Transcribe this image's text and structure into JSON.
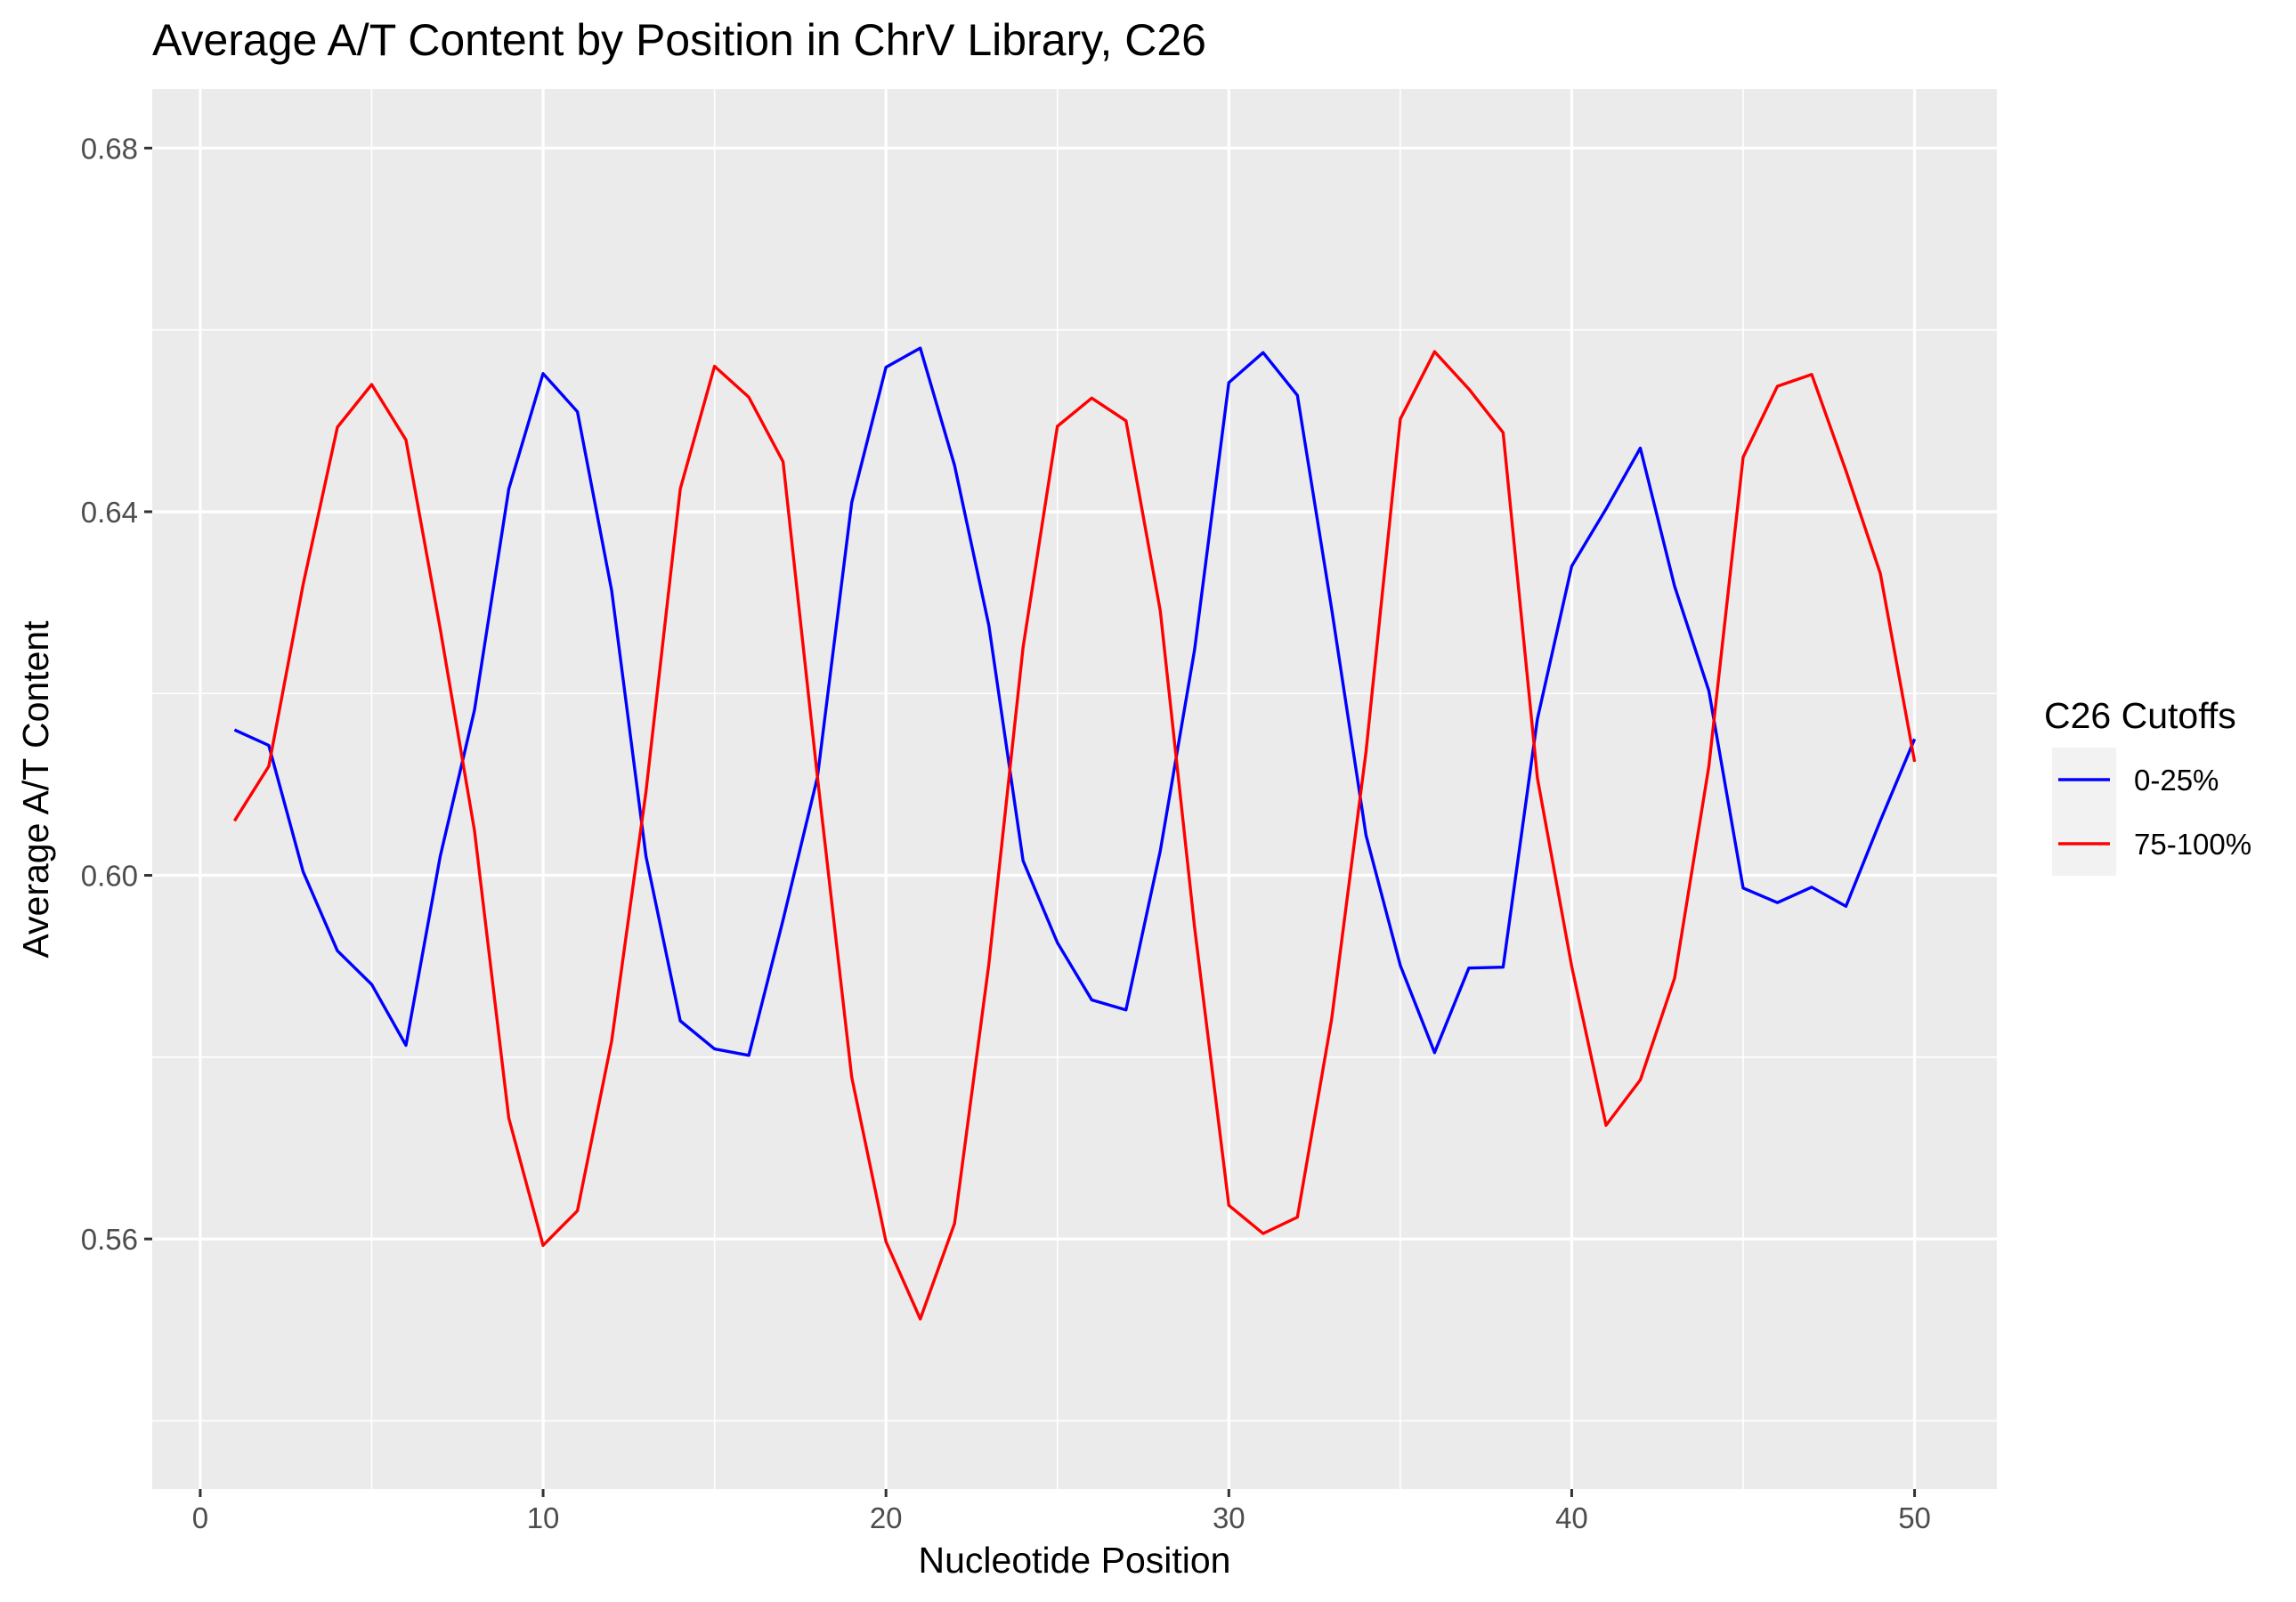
{
  "chart_data": {
    "type": "line",
    "title": "Average A/T Content by Position in ChrV Library, C26",
    "xlabel": "Nucleotide Position",
    "ylabel": "Average A/T Content",
    "xlim": [
      -1.4,
      52.4
    ],
    "ylim": [
      0.5325,
      0.6865
    ],
    "x_ticks": [
      0,
      10,
      20,
      30,
      40,
      50
    ],
    "x_tick_labels": [
      "0",
      "10",
      "20",
      "30",
      "40",
      "50"
    ],
    "y_ticks": [
      0.56,
      0.6,
      0.64,
      0.68
    ],
    "y_tick_labels": [
      "0.56",
      "0.60",
      "0.64",
      "0.68"
    ],
    "y_minor_ticks": [
      0.54,
      0.58,
      0.62,
      0.66
    ],
    "grid": true,
    "background": "#ebebeb",
    "legend": {
      "title": "C26 Cutoffs",
      "position": "right"
    },
    "x": [
      1,
      2,
      3,
      4,
      5,
      6,
      7,
      8,
      9,
      10,
      11,
      12,
      13,
      14,
      15,
      16,
      17,
      18,
      19,
      20,
      21,
      22,
      23,
      24,
      25,
      26,
      27,
      28,
      29,
      30,
      31,
      32,
      33,
      34,
      35,
      36,
      37,
      38,
      39,
      40,
      41,
      42,
      43,
      44,
      45,
      46,
      47,
      48,
      49,
      50
    ],
    "series": [
      {
        "name": "0-25%",
        "color": "#0000ff",
        "values": [
          0.616,
          0.6143,
          0.6004,
          0.5917,
          0.588,
          0.5813,
          0.6021,
          0.6182,
          0.6425,
          0.6552,
          0.651,
          0.6313,
          0.6021,
          0.584,
          0.5809,
          0.5802,
          0.5951,
          0.6108,
          0.641,
          0.6559,
          0.658,
          0.6451,
          0.6275,
          0.6016,
          0.5926,
          0.5863,
          0.5852,
          0.6027,
          0.6248,
          0.6542,
          0.6575,
          0.6528,
          0.6293,
          0.6044,
          0.5901,
          0.5805,
          0.5898,
          0.5899,
          0.6172,
          0.634,
          0.6403,
          0.647,
          0.6318,
          0.6203,
          0.5986,
          0.597,
          0.5987,
          0.5966,
          0.606,
          0.615
        ]
      },
      {
        "name": "75-100%",
        "color": "#ff0000",
        "values": [
          0.606,
          0.612,
          0.632,
          0.6493,
          0.654,
          0.6479,
          0.6271,
          0.6049,
          0.5733,
          0.5593,
          0.5631,
          0.5818,
          0.6092,
          0.6425,
          0.656,
          0.6526,
          0.6455,
          0.6108,
          0.5778,
          0.5597,
          0.5512,
          0.5617,
          0.5902,
          0.6251,
          0.6494,
          0.6525,
          0.65,
          0.6291,
          0.5943,
          0.5637,
          0.5606,
          0.5624,
          0.5842,
          0.6136,
          0.6502,
          0.6576,
          0.6535,
          0.6487,
          0.6107,
          0.59,
          0.5725,
          0.5775,
          0.5887,
          0.612,
          0.646,
          0.6538,
          0.6551,
          0.6445,
          0.6332,
          0.6125
        ]
      }
    ]
  }
}
